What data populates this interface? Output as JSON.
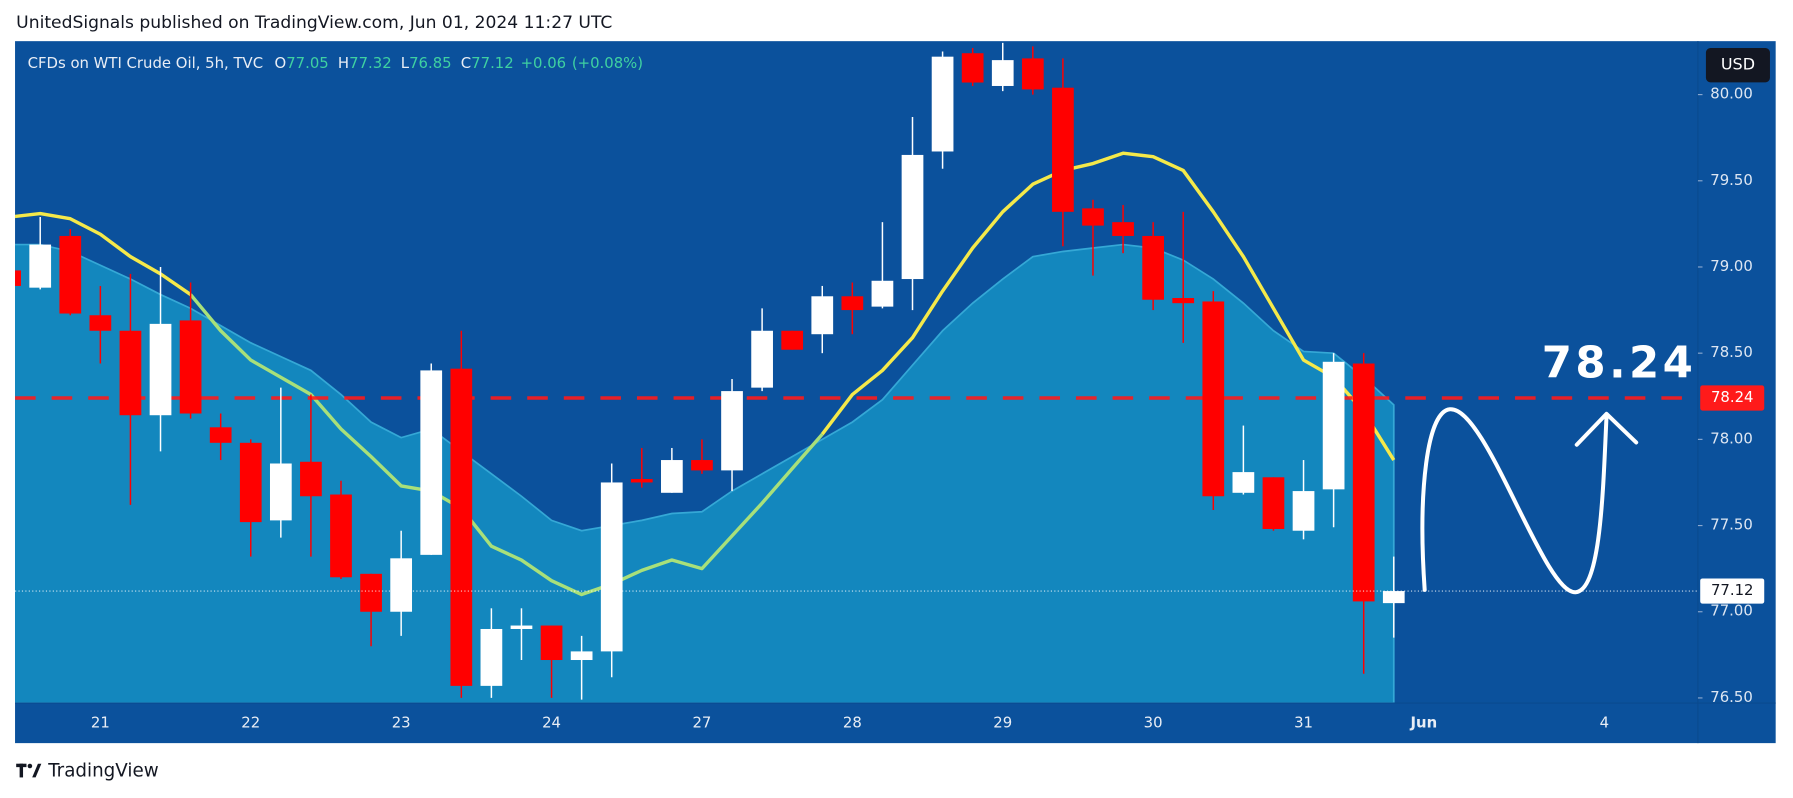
{
  "header": {
    "title": "UnitedSignals published on TradingView.com, Jun 01, 2024 11:27 UTC",
    "brand": "TradingView"
  },
  "chart_data": {
    "type": "candlestick",
    "legend": {
      "symbol": "CFDs on WTI Crude Oil, 5h, TVC",
      "keys": [
        "O",
        "H",
        "L",
        "C"
      ],
      "change": "+0.06",
      "change_pct": "(+0.08%)"
    },
    "currency": "USD",
    "up_color": "#ffffff",
    "down_color": "#ff0000",
    "categories": [
      null,
      null,
      null,
      "21",
      null,
      null,
      null,
      null,
      "22",
      null,
      null,
      null,
      null,
      "23",
      null,
      null,
      null,
      null,
      "24",
      null,
      null,
      null,
      null,
      "27",
      null,
      null,
      null,
      null,
      "28",
      null,
      null,
      null,
      null,
      "29",
      null,
      null,
      null,
      null,
      "30",
      null,
      null,
      null,
      null,
      "31",
      null,
      null,
      null,
      "Jun",
      null,
      null,
      null,
      null,
      null,
      "4"
    ],
    "open": [
      78.98,
      78.88,
      79.18,
      78.72,
      78.63,
      78.14,
      78.69,
      78.07,
      77.98,
      77.53,
      77.87,
      77.68,
      77.22,
      77.0,
      77.33,
      78.41,
      76.57,
      76.9,
      76.92,
      76.72,
      76.77,
      77.77,
      77.69,
      77.88,
      77.82,
      78.3,
      78.63,
      78.61,
      78.83,
      78.77,
      78.93,
      79.67,
      80.24,
      80.05,
      80.21,
      80.04,
      79.34,
      79.26,
      79.18,
      78.82,
      78.8,
      77.69,
      77.78,
      77.47,
      77.71,
      78.44,
      77.05,
      null,
      null,
      null,
      null,
      null,
      null,
      null
    ],
    "high": [
      79.02,
      79.29,
      79.22,
      78.89,
      78.96,
      79.0,
      78.91,
      78.15,
      78.0,
      78.3,
      78.26,
      77.76,
      77.22,
      77.47,
      78.44,
      78.63,
      77.02,
      77.02,
      76.92,
      76.86,
      77.86,
      77.95,
      77.95,
      78.0,
      78.35,
      78.76,
      78.63,
      78.89,
      78.91,
      79.26,
      79.87,
      80.25,
      80.27,
      80.3,
      80.28,
      80.21,
      79.39,
      79.36,
      79.26,
      79.32,
      78.86,
      78.08,
      77.78,
      77.88,
      78.5,
      78.5,
      77.32,
      null,
      null,
      null,
      null,
      null,
      null,
      null
    ],
    "low": [
      78.85,
      78.87,
      78.72,
      78.44,
      77.62,
      77.93,
      78.12,
      77.88,
      77.32,
      77.43,
      77.32,
      77.19,
      76.8,
      76.86,
      77.33,
      76.5,
      76.5,
      76.72,
      76.5,
      76.49,
      76.62,
      77.72,
      77.69,
      77.8,
      77.7,
      78.28,
      78.52,
      78.5,
      78.61,
      78.76,
      78.75,
      79.57,
      80.05,
      80.02,
      80.0,
      79.12,
      78.95,
      79.08,
      78.75,
      78.56,
      77.59,
      77.68,
      77.47,
      77.42,
      77.49,
      76.64,
      76.85,
      null,
      null,
      null,
      null,
      null,
      null,
      null
    ],
    "close": [
      78.89,
      79.13,
      78.73,
      78.63,
      78.14,
      78.67,
      78.15,
      77.98,
      77.52,
      77.86,
      77.67,
      77.2,
      77.0,
      77.31,
      78.4,
      76.57,
      76.9,
      76.92,
      76.72,
      76.77,
      77.75,
      77.75,
      77.88,
      77.82,
      78.28,
      78.63,
      78.52,
      78.83,
      78.75,
      78.92,
      79.65,
      80.22,
      80.07,
      80.2,
      80.03,
      79.32,
      79.24,
      79.18,
      78.81,
      78.79,
      77.67,
      77.81,
      77.48,
      77.7,
      78.45,
      77.06,
      77.12,
      null,
      null,
      null,
      null,
      null,
      null,
      null
    ],
    "series": [
      {
        "color": "#1590c4",
        "fill": true,
        "values": [
          79.13,
          79.13,
          79.09,
          79.01,
          78.93,
          78.84,
          78.76,
          78.66,
          78.56,
          78.48,
          78.4,
          78.26,
          78.1,
          78.01,
          78.06,
          77.93,
          77.8,
          77.67,
          77.53,
          77.47,
          77.5,
          77.53,
          77.57,
          77.58,
          77.7,
          77.8,
          77.9,
          78.0,
          78.1,
          78.23,
          78.43,
          78.63,
          78.79,
          78.93,
          79.06,
          79.09,
          79.11,
          79.13,
          79.11,
          79.04,
          78.93,
          78.79,
          78.63,
          78.51,
          78.5,
          78.36,
          78.2,
          null,
          null,
          null,
          null,
          null,
          null,
          null
        ]
      },
      {
        "color": "#f5e94a",
        "values": [
          79.29,
          79.31,
          79.28,
          79.19,
          79.06,
          78.96,
          78.84,
          null,
          null,
          null,
          null,
          null,
          null,
          null,
          null,
          null,
          null,
          null,
          null,
          null,
          null,
          null,
          null,
          null,
          null,
          null,
          null,
          78.03,
          78.26,
          78.4,
          78.59,
          78.86,
          79.11,
          79.32,
          79.48,
          79.56,
          79.6,
          79.66,
          79.64,
          79.56,
          79.32,
          79.06,
          78.76,
          78.46,
          78.36,
          78.16,
          77.88,
          null,
          null,
          null,
          null,
          null,
          null,
          null
        ]
      },
      {
        "color": "#a8e07a",
        "values": [
          null,
          null,
          null,
          null,
          null,
          null,
          78.84,
          78.63,
          78.46,
          78.36,
          78.26,
          78.06,
          77.9,
          77.73,
          77.7,
          77.6,
          77.38,
          77.3,
          77.18,
          77.1,
          77.16,
          77.24,
          77.3,
          77.25,
          77.44,
          77.63,
          77.83,
          78.03,
          null,
          null,
          null,
          null,
          null,
          null,
          null,
          null,
          null,
          null,
          null,
          null,
          null,
          null,
          null,
          null,
          null,
          null,
          null,
          null,
          null,
          null,
          null,
          null,
          null,
          null
        ]
      }
    ],
    "levels": [
      {
        "value": 78.24,
        "color": "#ff1a1a",
        "style": "dashed"
      }
    ],
    "ylim": [
      76.47,
      80.31
    ],
    "yticks": [
      {
        "value": 76.5,
        "label": "76.50"
      },
      {
        "value": 77,
        "label": "77.00"
      },
      {
        "value": 77.5,
        "label": "77.50"
      },
      {
        "value": 78,
        "label": "78.00"
      },
      {
        "value": 78.5,
        "label": "78.50"
      },
      {
        "value": 79,
        "label": "79.00"
      },
      {
        "value": 79.5,
        "label": "79.50"
      },
      {
        "value": 80,
        "label": "80.00"
      }
    ],
    "grid": false
  }
}
